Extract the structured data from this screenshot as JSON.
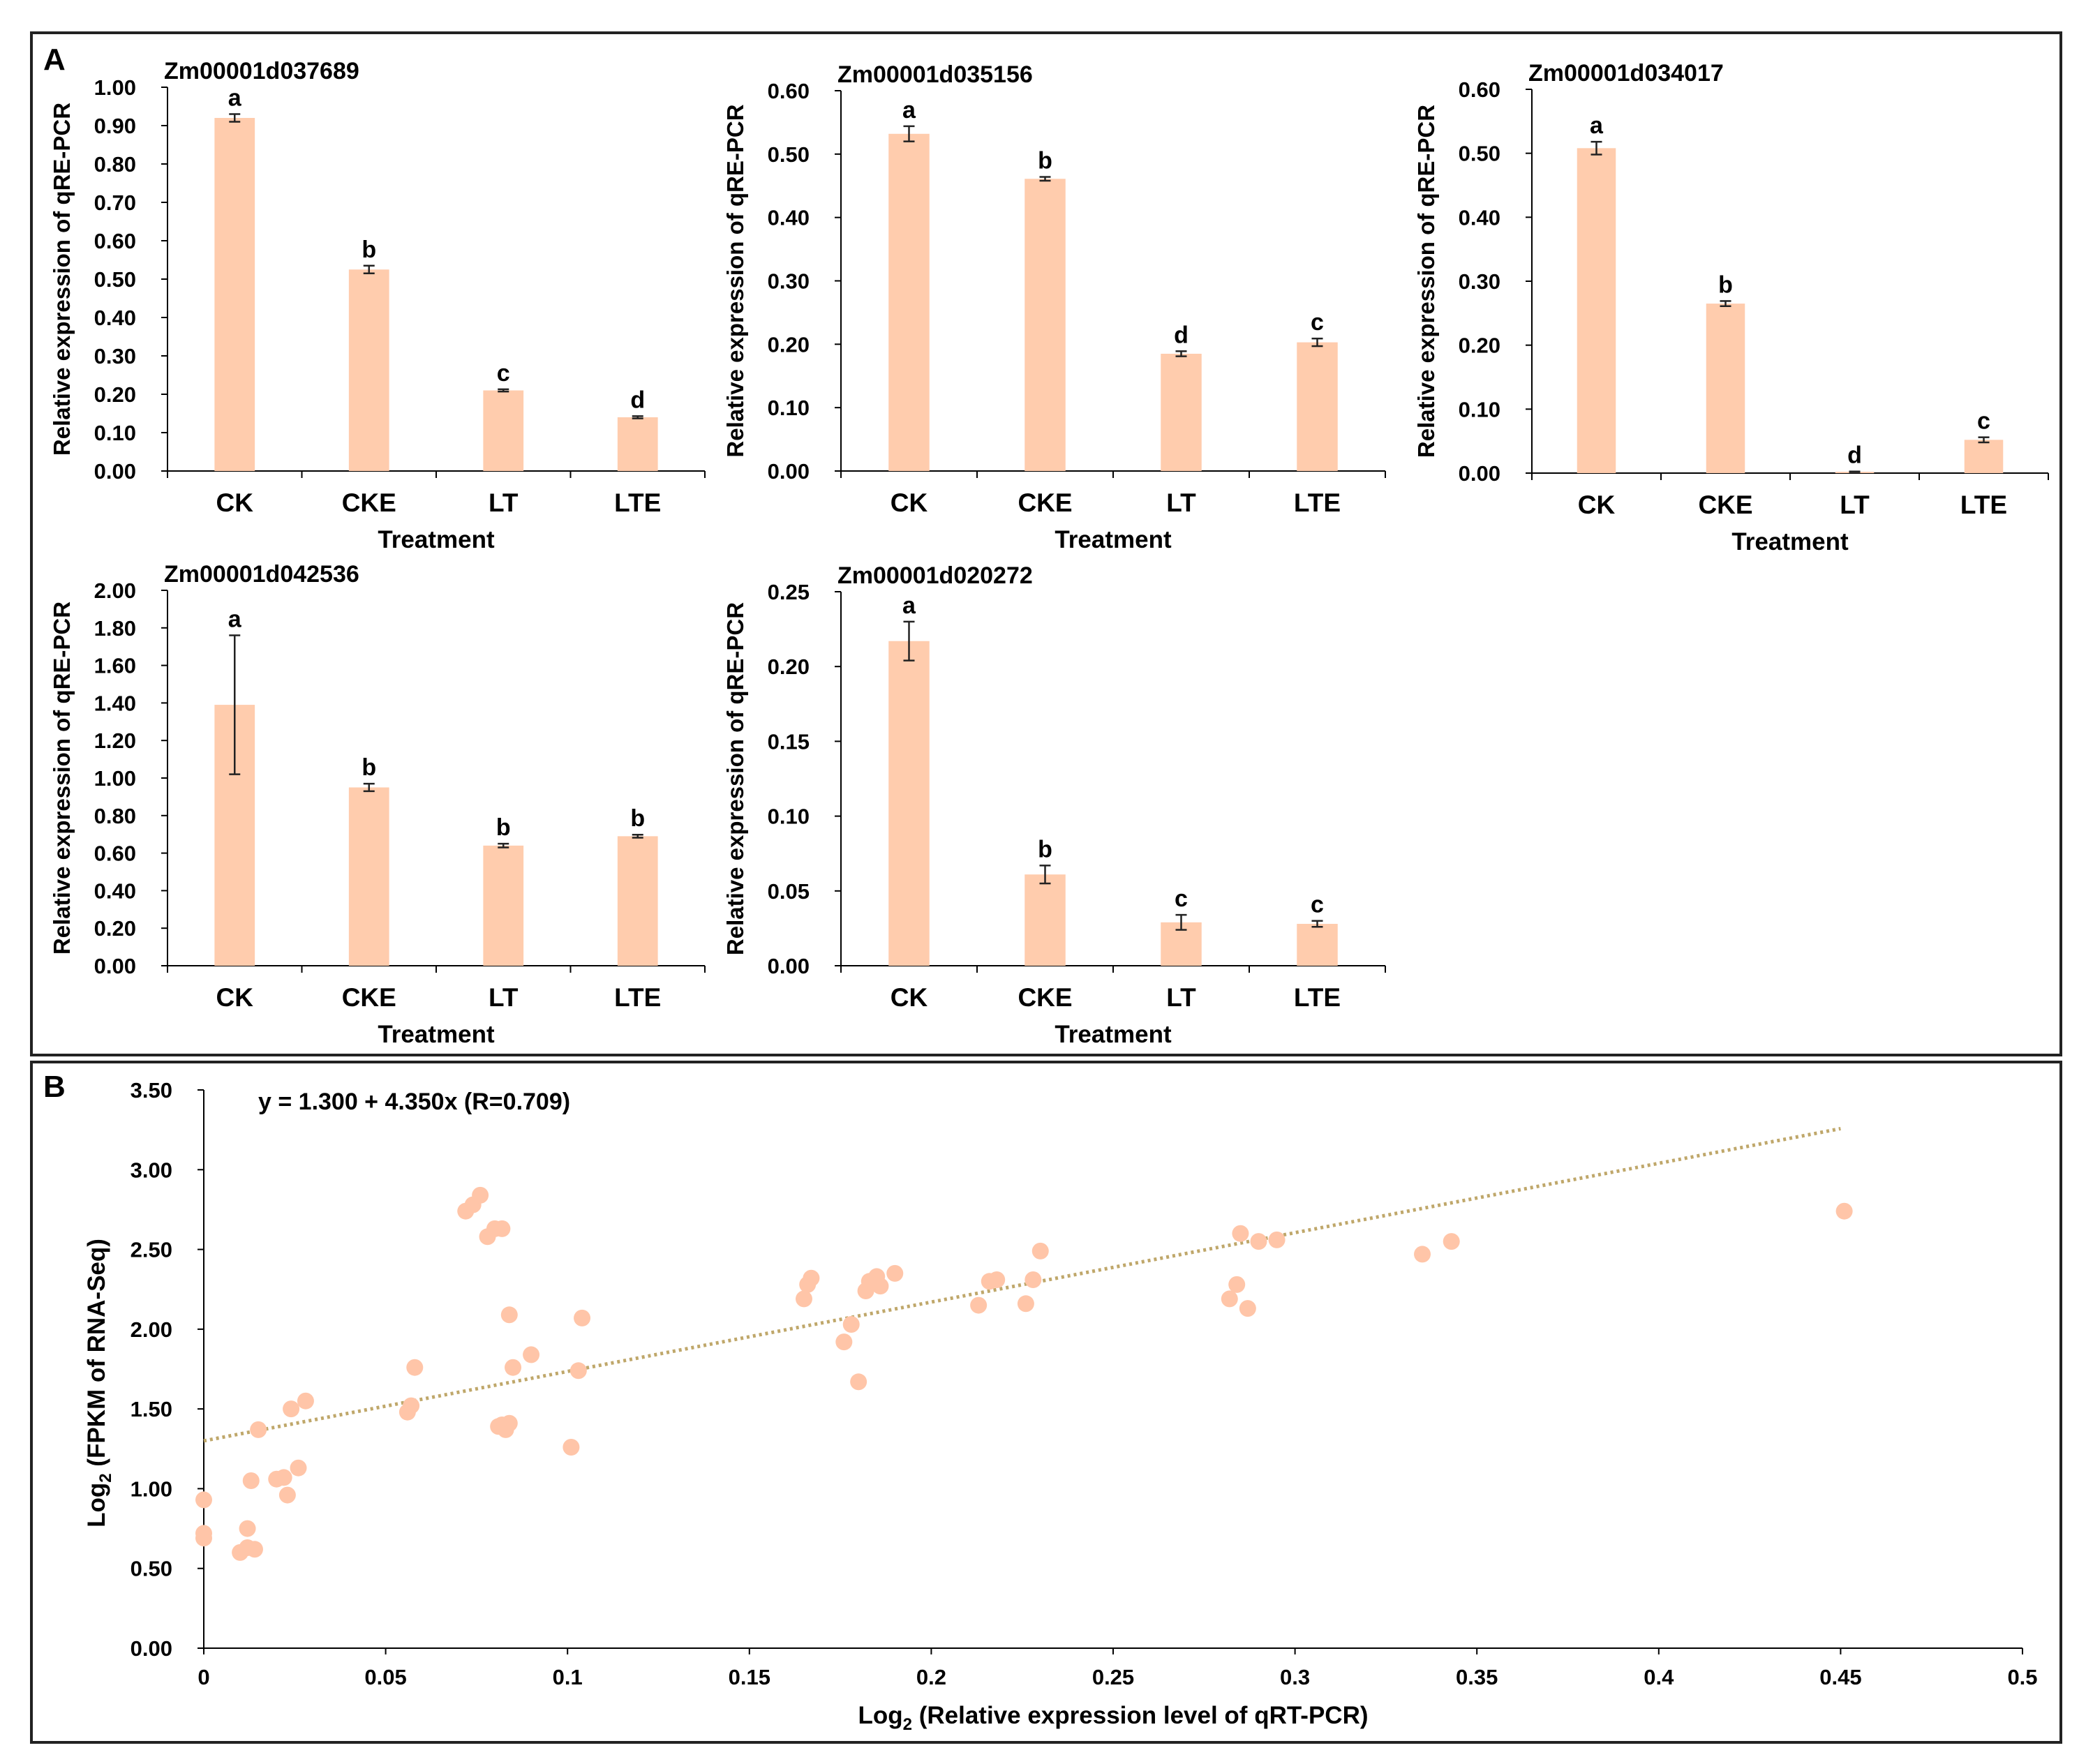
{
  "panel_labels": [
    "A",
    "B"
  ],
  "colors": {
    "bar": "#FFCCAD",
    "point": "#FFC5A8",
    "trend": "#BFA76A",
    "axis": "#000000"
  },
  "chart_data": [
    {
      "type": "bar",
      "title": "Zm00001d037689",
      "categories": [
        "CK",
        "CKE",
        "LT",
        "LTE"
      ],
      "values": [
        0.92,
        0.525,
        0.21,
        0.14
      ],
      "errors": [
        0.01,
        0.01,
        0.003,
        0.003
      ],
      "letters": [
        "a",
        "b",
        "c",
        "d"
      ],
      "xlabel": "Treatment",
      "ylabel": "Relative expression of qRE-PCR",
      "ylim": [
        0,
        1.0
      ],
      "yticks": [
        "0.00",
        "0.10",
        "0.20",
        "0.30",
        "0.40",
        "0.50",
        "0.60",
        "0.70",
        "0.80",
        "0.90",
        "1.00"
      ]
    },
    {
      "type": "bar",
      "title": "Zm00001d035156",
      "categories": [
        "CK",
        "CKE",
        "LT",
        "LTE"
      ],
      "values": [
        0.532,
        0.461,
        0.185,
        0.203
      ],
      "errors": [
        0.012,
        0.003,
        0.004,
        0.006
      ],
      "letters": [
        "a",
        "b",
        "d",
        "c"
      ],
      "xlabel": "Treatment",
      "ylabel": "Relative expression of qRE-PCR",
      "ylim": [
        0,
        0.6
      ],
      "yticks": [
        "0.00",
        "0.10",
        "0.20",
        "0.30",
        "0.40",
        "0.50",
        "0.60"
      ]
    },
    {
      "type": "bar",
      "title": "Zm00001d034017",
      "categories": [
        "CK",
        "CKE",
        "LT",
        "LTE"
      ],
      "values": [
        0.508,
        0.265,
        0.002,
        0.052
      ],
      "errors": [
        0.01,
        0.004,
        0.0005,
        0.004
      ],
      "letters": [
        "a",
        "b",
        "d",
        "c"
      ],
      "xlabel": "Treatment",
      "ylabel": "Relative expression of qRE-PCR",
      "ylim": [
        0,
        0.6
      ],
      "yticks": [
        "0.00",
        "0.10",
        "0.20",
        "0.30",
        "0.40",
        "0.50",
        "0.60"
      ]
    },
    {
      "type": "bar",
      "title": "Zm00001d042536",
      "categories": [
        "CK",
        "CKE",
        "LT",
        "LTE"
      ],
      "values": [
        1.39,
        0.95,
        0.64,
        0.69
      ],
      "errors": [
        0.37,
        0.02,
        0.01,
        0.008
      ],
      "letters": [
        "a",
        "b",
        "b",
        "b"
      ],
      "xlabel": "Treatment",
      "ylabel": "Relative expression of qRE-PCR",
      "ylim": [
        0,
        2.0
      ],
      "yticks": [
        "0.00",
        "0.20",
        "0.40",
        "0.60",
        "0.80",
        "1.00",
        "1.20",
        "1.40",
        "1.60",
        "1.80",
        "2.00"
      ]
    },
    {
      "type": "bar",
      "title": "Zm00001d020272",
      "categories": [
        "CK",
        "CKE",
        "LT",
        "LTE"
      ],
      "values": [
        0.217,
        0.061,
        0.029,
        0.028
      ],
      "errors": [
        0.013,
        0.006,
        0.005,
        0.002
      ],
      "letters": [
        "a",
        "b",
        "c",
        "c"
      ],
      "xlabel": "Treatment",
      "ylabel": "Relative expression of qRE-PCR",
      "ylim": [
        0,
        0.25
      ],
      "yticks": [
        "0.00",
        "0.05",
        "0.10",
        "0.15",
        "0.20",
        "0.25"
      ]
    },
    {
      "type": "scatter",
      "equation": "y = 1.300 + 4.350x (R=0.709)",
      "xlabel_prefix": "Log",
      "xlabel_sub": "2",
      "xlabel_rest": " (Relative expression level of qRT-PCR)",
      "ylabel_prefix": "Log",
      "ylabel_sub": "2",
      "ylabel_rest": " (FPKM of RNA-Seq)",
      "xlim": [
        0,
        0.5
      ],
      "ylim": [
        0,
        3.5
      ],
      "xticks": [
        "0",
        "0.05",
        "0.1",
        "0.15",
        "0.2",
        "0.25",
        "0.3",
        "0.35",
        "0.4",
        "0.45",
        "0.5"
      ],
      "yticks": [
        "0.00",
        "0.50",
        "1.00",
        "1.50",
        "2.00",
        "2.50",
        "3.00",
        "3.50"
      ],
      "trendline": {
        "intercept": 1.3,
        "slope": 4.35,
        "x_range": [
          0,
          0.45
        ]
      },
      "points": [
        [
          0.0,
          0.93
        ],
        [
          0.0,
          0.72
        ],
        [
          0.0,
          0.69
        ],
        [
          0.01,
          0.6
        ],
        [
          0.012,
          0.63
        ],
        [
          0.012,
          0.75
        ],
        [
          0.013,
          1.05
        ],
        [
          0.014,
          0.62
        ],
        [
          0.015,
          1.37
        ],
        [
          0.02,
          1.06
        ],
        [
          0.022,
          1.07
        ],
        [
          0.023,
          0.96
        ],
        [
          0.024,
          1.5
        ],
        [
          0.026,
          1.13
        ],
        [
          0.028,
          1.55
        ],
        [
          0.056,
          1.48
        ],
        [
          0.057,
          1.52
        ],
        [
          0.058,
          1.76
        ],
        [
          0.072,
          2.74
        ],
        [
          0.074,
          2.78
        ],
        [
          0.076,
          2.84
        ],
        [
          0.078,
          2.58
        ],
        [
          0.08,
          2.63
        ],
        [
          0.082,
          2.63
        ],
        [
          0.081,
          1.39
        ],
        [
          0.082,
          1.4
        ],
        [
          0.083,
          1.37
        ],
        [
          0.084,
          1.41
        ],
        [
          0.084,
          2.09
        ],
        [
          0.085,
          1.76
        ],
        [
          0.09,
          1.84
        ],
        [
          0.101,
          1.26
        ],
        [
          0.103,
          1.74
        ],
        [
          0.104,
          2.07
        ],
        [
          0.165,
          2.19
        ],
        [
          0.166,
          2.28
        ],
        [
          0.167,
          2.32
        ],
        [
          0.176,
          1.92
        ],
        [
          0.178,
          2.03
        ],
        [
          0.18,
          1.67
        ],
        [
          0.182,
          2.24
        ],
        [
          0.183,
          2.3
        ],
        [
          0.185,
          2.33
        ],
        [
          0.186,
          2.27
        ],
        [
          0.19,
          2.35
        ],
        [
          0.213,
          2.15
        ],
        [
          0.216,
          2.3
        ],
        [
          0.218,
          2.31
        ],
        [
          0.226,
          2.16
        ],
        [
          0.228,
          2.31
        ],
        [
          0.23,
          2.49
        ],
        [
          0.282,
          2.19
        ],
        [
          0.284,
          2.28
        ],
        [
          0.285,
          2.6
        ],
        [
          0.287,
          2.13
        ],
        [
          0.29,
          2.55
        ],
        [
          0.295,
          2.56
        ],
        [
          0.335,
          2.47
        ],
        [
          0.343,
          2.55
        ],
        [
          0.451,
          2.74
        ]
      ]
    }
  ]
}
